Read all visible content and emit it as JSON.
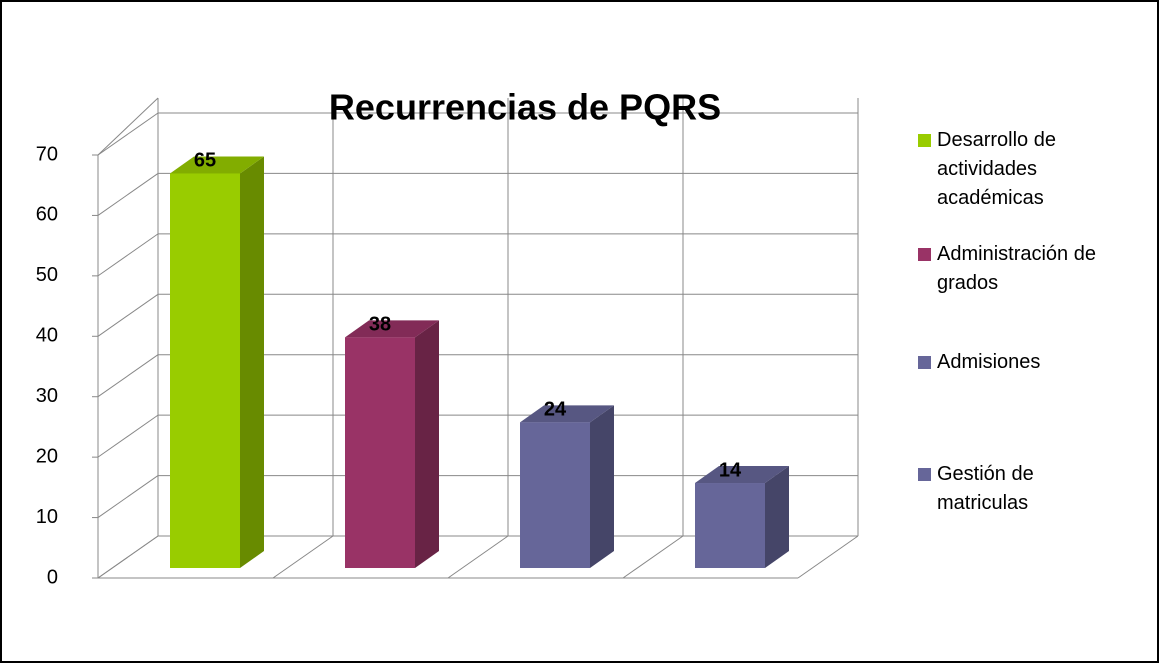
{
  "chart_data": {
    "type": "bar3d",
    "title": "Recurrencias de PQRS",
    "categories": [
      "Desarrollo de actividades académicas",
      "Administración de grados",
      "Admisiones",
      "Gestión de matriculas"
    ],
    "values": [
      65,
      38,
      24,
      14
    ],
    "colors": [
      "#99cc00",
      "#993366",
      "#666699",
      "#666699"
    ],
    "ylim": [
      0,
      70
    ],
    "yticks": [
      0,
      10,
      20,
      30,
      40,
      50,
      60,
      70
    ],
    "grid": true,
    "legend": "right"
  }
}
